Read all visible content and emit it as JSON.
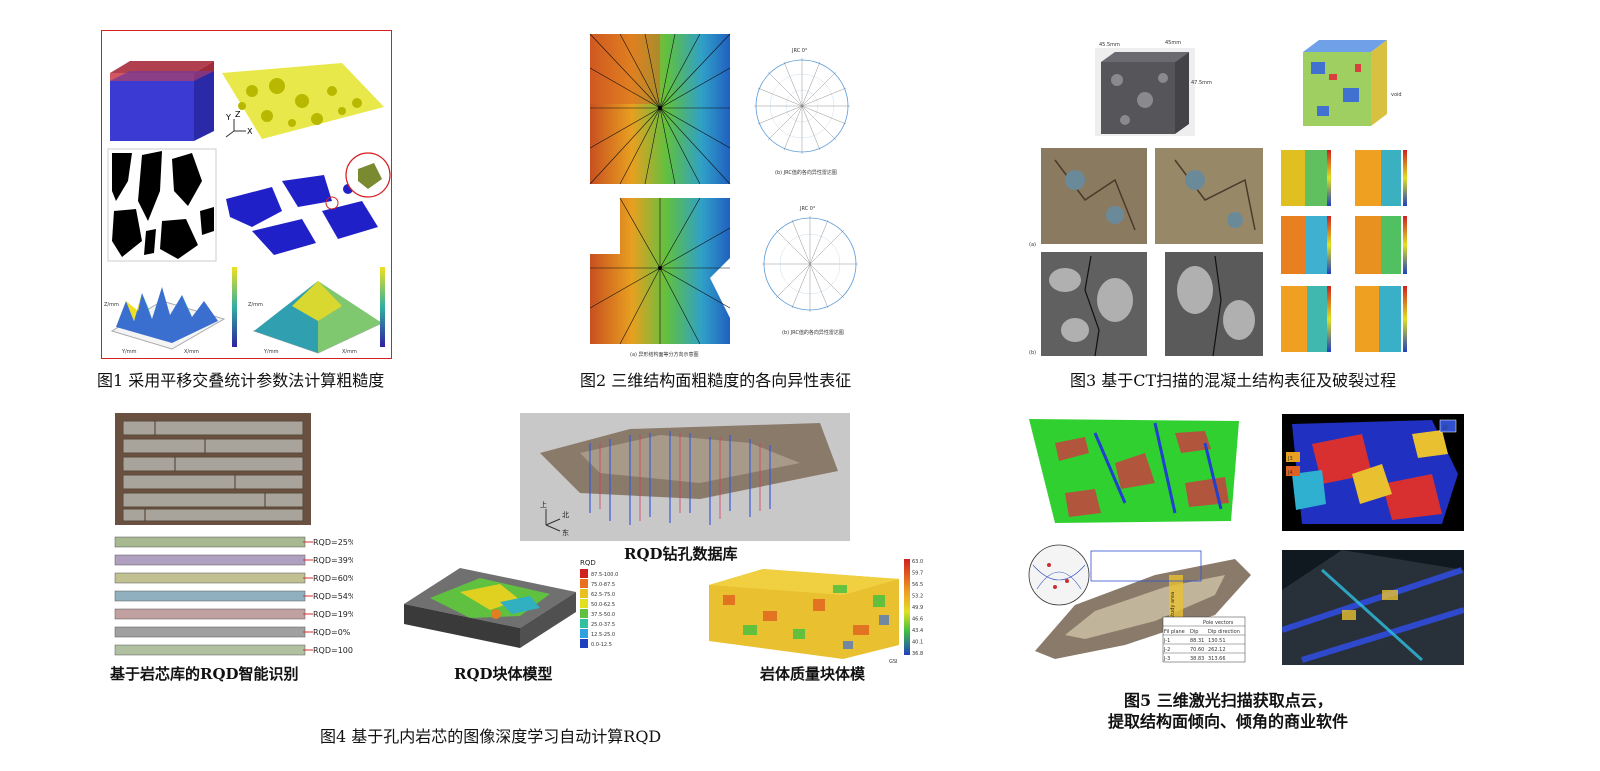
{
  "figures": {
    "fig1": {
      "caption": "图1 采用平移交叠统计参数法计算粗糙度"
    },
    "fig2": {
      "caption": "图2 三维结构面粗糙度的各向异性表征",
      "sub_a": "(a) 异形结构面等分方向示意图",
      "sub_b_top": "(b) JRC值的各向异性雷达图",
      "sub_b_bottom": "(b) JRC值的各向异性雷达图",
      "radar_title": "JRC 0°"
    },
    "fig3": {
      "caption": "图3 基于CT扫描的混凝土结构表征及破裂过程",
      "dim_w": "45.5mm",
      "dim_d": "45mm",
      "dim_h": "47.5mm",
      "label_a": "(a)",
      "label_b": "(b)",
      "void_label": "void"
    },
    "fig4": {
      "caption": "图4 基于孔内岩芯的图像深度学习自动计算RQD",
      "sub_core": "基于岩芯库的RQD智能识别",
      "sub_db": "RQD钻孔数据库",
      "sub_block": "RQD块体模型",
      "sub_mass": "岩体质量块体模",
      "rqd_values": [
        "RQD=25%",
        "RQD=39%",
        "RQD=60%",
        "RQD=54%",
        "RQD=19%",
        "RQD=0%",
        "RQD=100%"
      ],
      "legend_title": "RQD",
      "legend_items": [
        "87.5-100.0",
        "75.0-87.5",
        "62.5-75.0",
        "50.0-62.5",
        "37.5-50.0",
        "25.0-37.5",
        "12.5-25.0",
        "0.0-12.5"
      ],
      "gsi_label": "GSI",
      "gsi_ticks": [
        "63.0",
        "59.7",
        "56.5",
        "53.2",
        "49.9",
        "46.6",
        "43.4",
        "40.1",
        "36.8"
      ],
      "axis_up": "上",
      "axis_north": "北",
      "axis_east": "东"
    },
    "fig5": {
      "caption_line1": "图5 三维激光扫描获取点云，",
      "caption_line2": "提取结构面倾向、倾角的商业软件",
      "table_header": [
        "Fil plane",
        "Dip",
        "Dip direction"
      ],
      "table_title": "Pole vectors",
      "table_rows": [
        [
          "J-1",
          "88.31",
          "130.51"
        ],
        [
          "J-2",
          "70.60",
          "262.12"
        ],
        [
          "J-3",
          "38.83",
          "313.66"
        ]
      ],
      "study_label": "Study area",
      "tag_j3": "J3",
      "tag_j4": "J4",
      "tag_j2": "J2"
    }
  },
  "colors": {
    "red_frame": "#d62020",
    "blue_block": "#3f3fd0",
    "red_block": "#cc3040",
    "yellow_surface": "#cccc10",
    "green_scan": "#33cc33"
  }
}
